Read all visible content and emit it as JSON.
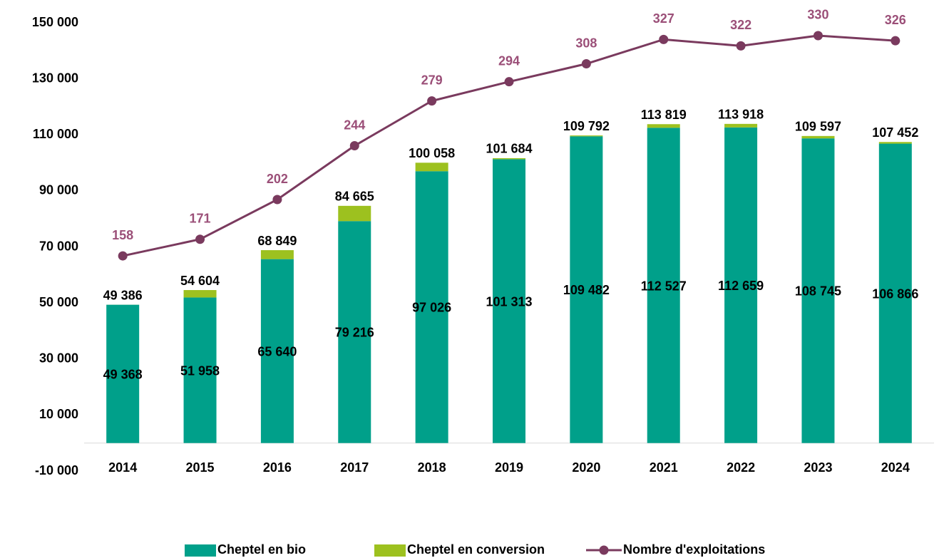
{
  "chart_data": {
    "type": "bar_line",
    "categories": [
      "2014",
      "2015",
      "2016",
      "2017",
      "2018",
      "2019",
      "2020",
      "2021",
      "2022",
      "2023",
      "2024"
    ],
    "series": [
      {
        "name": "Cheptel en bio",
        "color": "#00a08a",
        "type": "bar",
        "values": [
          49368,
          51958,
          65640,
          79216,
          97026,
          101313,
          109482,
          112527,
          112659,
          108745,
          106866
        ],
        "value_labels": [
          "49 368",
          "51 958",
          "65 640",
          "79 216",
          "97 026",
          "101 313",
          "109 482",
          "112 527",
          "112 659",
          "108 745",
          "106 866"
        ]
      },
      {
        "name": "Cheptel en conversion",
        "color": "#9dc11f",
        "type": "bar",
        "values": [
          18,
          2646,
          3209,
          5449,
          3032,
          371,
          310,
          1292,
          1259,
          852,
          586
        ]
      },
      {
        "name": "Nombre d'exploitations",
        "color": "#7a3a5e",
        "label_color": "#9b4f78",
        "type": "line",
        "axis": "y2",
        "values": [
          158,
          171,
          202,
          244,
          279,
          294,
          308,
          327,
          322,
          330,
          326
        ]
      }
    ],
    "total_labels": [
      "49 386",
      "54 604",
      "68 849",
      "84 665",
      "100 058",
      "101 684",
      "109 792",
      "113 819",
      "113 918",
      "109 597",
      "107 452"
    ],
    "ylim": [
      -10000,
      150000
    ],
    "yticks": [
      {
        "value": -10000,
        "label": "-10 000"
      },
      {
        "value": 10000,
        "label": "10 000"
      },
      {
        "value": 30000,
        "label": "30 000"
      },
      {
        "value": 50000,
        "label": "50 000"
      },
      {
        "value": 70000,
        "label": "70 000"
      },
      {
        "value": 90000,
        "label": "90 000"
      },
      {
        "value": 110000,
        "label": "110 000"
      },
      {
        "value": 130000,
        "label": "130 000"
      },
      {
        "value": 150000,
        "label": "150 000"
      }
    ],
    "y2lim": [
      -10,
      340
    ],
    "legend": "bottom"
  }
}
